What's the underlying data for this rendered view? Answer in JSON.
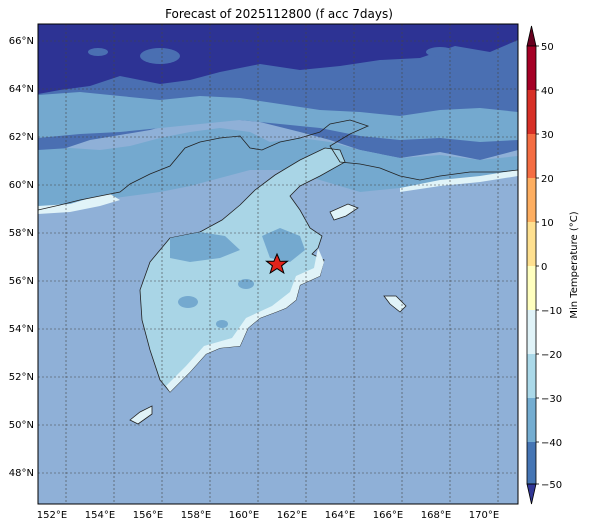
{
  "title": "Forecast of 2025112800 (f acc 7days)",
  "lon_ticks": [
    "152°E",
    "154°E",
    "156°E",
    "158°E",
    "160°E",
    "162°E",
    "164°E",
    "166°E",
    "168°E",
    "170°E"
  ],
  "lat_ticks": [
    "66°N",
    "64°N",
    "62°N",
    "60°N",
    "58°N",
    "56°N",
    "54°N",
    "52°N",
    "50°N",
    "48°N"
  ],
  "colorbar": {
    "label": "Min Temperature (°C)",
    "ticks": [
      "50",
      "40",
      "30",
      "20",
      "10",
      "0",
      "−10",
      "−20",
      "−30",
      "−40",
      "−50"
    ]
  },
  "colors": {
    "ocean": "#8fb0d7",
    "very_cold": "#2d3394",
    "cold": "#4a6fb2",
    "mid": "#74a9cf",
    "land_light": "#a9d5e6",
    "pale": "#e0f3f8"
  },
  "marker": {
    "symbol": "red-star"
  }
}
